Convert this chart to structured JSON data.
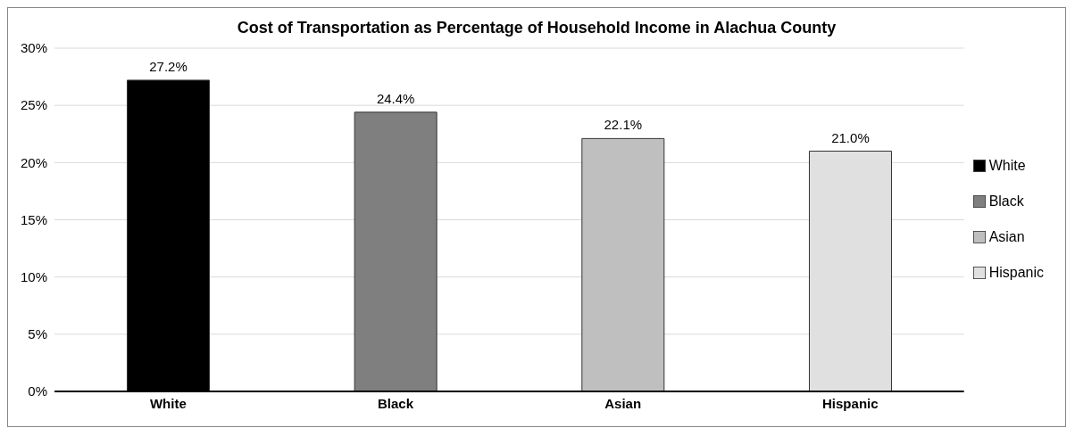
{
  "chart_data": {
    "type": "bar",
    "title": "Cost of Transportation as Percentage of Household Income in Alachua County",
    "categories": [
      "White",
      "Black",
      "Asian",
      "Hispanic"
    ],
    "stacked": true,
    "series": [
      {
        "name": "White",
        "color": "#000000",
        "values": [
          27.2,
          null,
          null,
          null
        ],
        "value_labels": [
          "27.2%",
          null,
          null,
          null
        ]
      },
      {
        "name": "Black",
        "color": "#7f7f7f",
        "values": [
          null,
          24.4,
          null,
          null
        ],
        "value_labels": [
          null,
          "24.4%",
          null,
          null
        ]
      },
      {
        "name": "Asian",
        "color": "#bfbfbf",
        "values": [
          null,
          null,
          22.1,
          null
        ],
        "value_labels": [
          null,
          null,
          "22.1%",
          null
        ]
      },
      {
        "name": "Hispanic",
        "color": "#e0e0e0",
        "values": [
          null,
          null,
          null,
          21.0
        ],
        "value_labels": [
          null,
          null,
          null,
          "21.0%"
        ]
      }
    ],
    "ylim": [
      0,
      30
    ],
    "yticks": [
      {
        "value": 0,
        "label": "0%"
      },
      {
        "value": 5,
        "label": "5%"
      },
      {
        "value": 10,
        "label": "10%"
      },
      {
        "value": 15,
        "label": "15%"
      },
      {
        "value": 20,
        "label": "20%"
      },
      {
        "value": 25,
        "label": "25%"
      },
      {
        "value": 30,
        "label": "30%"
      }
    ],
    "grid": "y",
    "legend": "right"
  }
}
